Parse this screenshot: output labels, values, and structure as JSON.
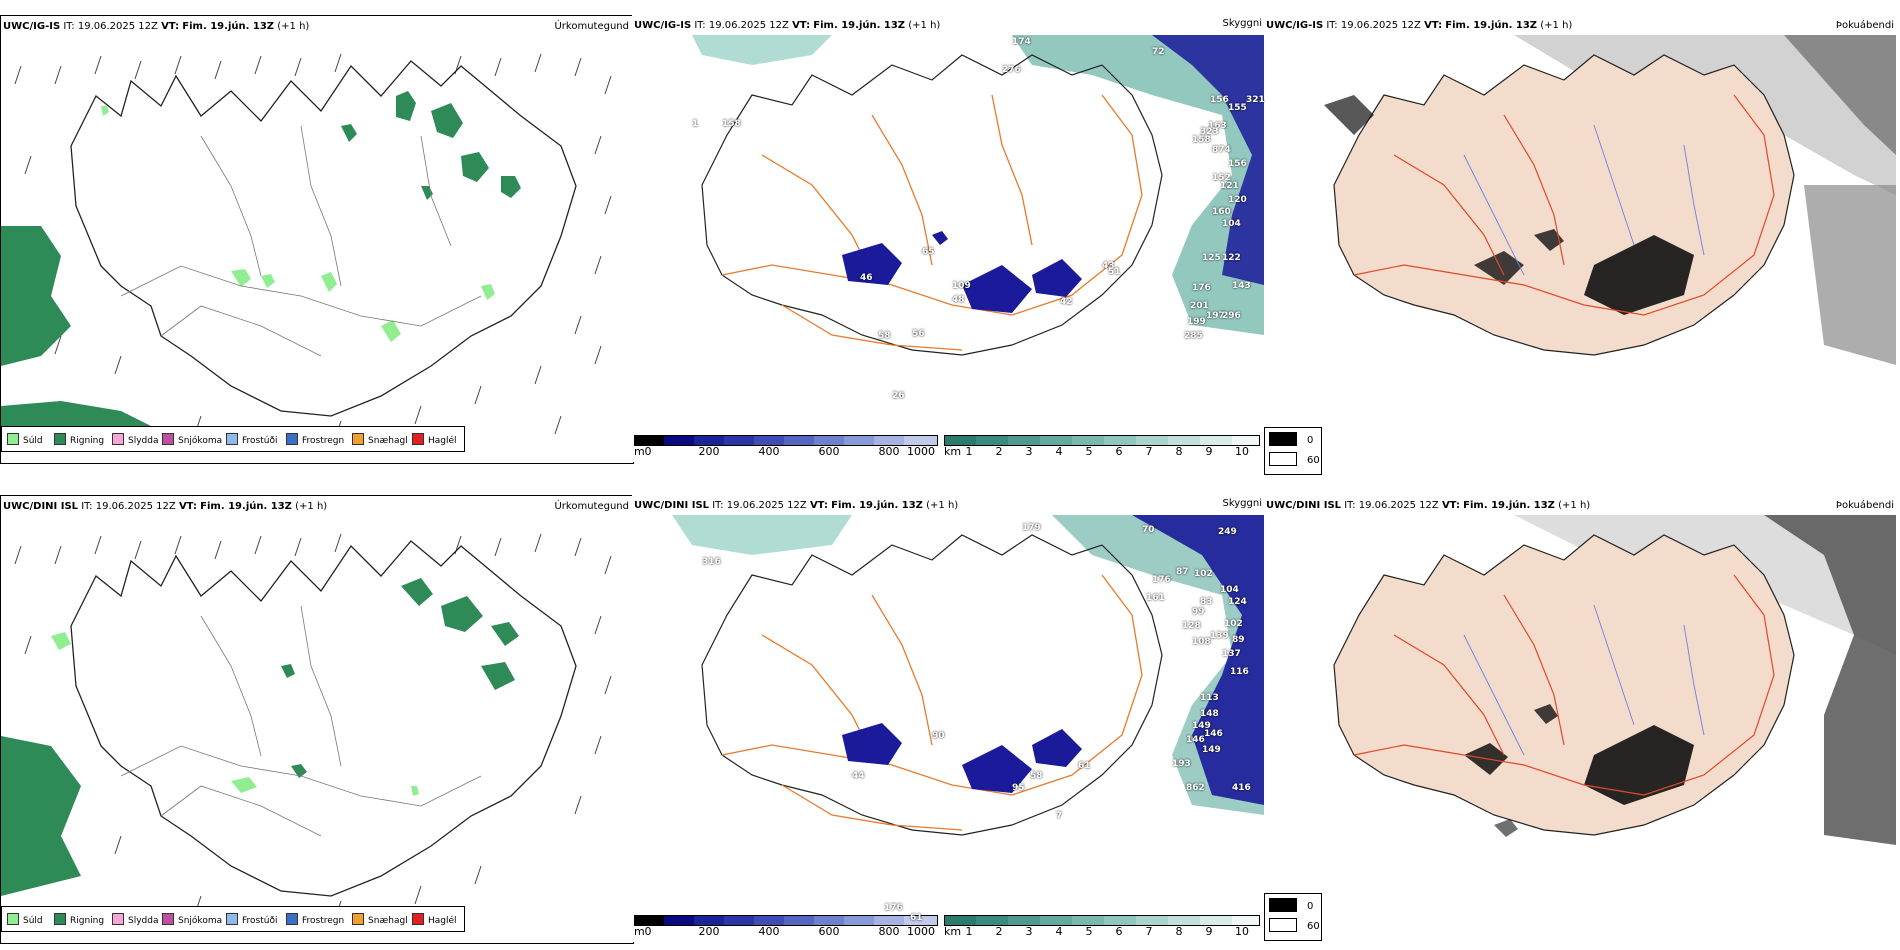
{
  "rows": [
    {
      "model": "UWC/IG-IS",
      "it_label": "IT:",
      "it_value": "19.06.2025 12Z",
      "vt_label": "VT:",
      "vt_value": "Fim. 19.jún. 13Z",
      "lead": "(+1 h)"
    },
    {
      "model": "UWC/DINI ISL",
      "it_label": "IT:",
      "it_value": "19.06.2025 12Z",
      "vt_label": "VT:",
      "vt_value": "Fim. 19.jún. 13Z",
      "lead": "(+1 h)"
    }
  ],
  "panel_titles": {
    "precip": "Úrkomutegund",
    "cloud": "Skyggni",
    "fog": "Þokuábendi"
  },
  "precip_legend": [
    {
      "label": "Súld",
      "color": "#90ee90"
    },
    {
      "label": "Rigning",
      "color": "#2e8b57"
    },
    {
      "label": "Slydda",
      "color": "#f4a6d7"
    },
    {
      "label": "Snjókoma",
      "color": "#c04fa0"
    },
    {
      "label": "Frostúði",
      "color": "#8fb8ef"
    },
    {
      "label": "Frostregn",
      "color": "#3a6fc4"
    },
    {
      "label": "Snæhagl",
      "color": "#f0a030"
    },
    {
      "label": "Haglél",
      "color": "#e02020"
    }
  ],
  "colorbar_m": {
    "unit": "m",
    "ticks": [
      "0",
      "200",
      "400",
      "600",
      "800",
      "1000"
    ],
    "colors": [
      "#000000",
      "#0a0a80",
      "#1a2496",
      "#2b36a6",
      "#3d4db4",
      "#5566c2",
      "#6d7fcd",
      "#8899d8",
      "#a6b3e2",
      "#c2caec"
    ]
  },
  "colorbar_km": {
    "unit": "km",
    "ticks": [
      "1",
      "2",
      "3",
      "4",
      "5",
      "6",
      "7",
      "8",
      "9",
      "10"
    ],
    "colors": [
      "#2a7a6e",
      "#3a8a7e",
      "#4e9a8e",
      "#63aa9e",
      "#7ab8ad",
      "#92c6bc",
      "#aad3cb",
      "#c2e0da",
      "#daece8",
      "#f1f7f6"
    ]
  },
  "fog_legend": [
    {
      "label": "0",
      "color": "#000000"
    },
    {
      "label": "60",
      "color": "#ffffff"
    }
  ],
  "cloud_labels_top": [
    "174",
    "72",
    "276",
    "156",
    "155",
    "321",
    "163",
    "323",
    "158",
    "874",
    "156",
    "152",
    "121",
    "120",
    "160",
    "104",
    "125",
    "122",
    "143",
    "176",
    "201",
    "199",
    "197",
    "296",
    "285",
    "46",
    "65",
    "109",
    "43",
    "51",
    "48",
    "42",
    "58",
    "56",
    "26",
    "158",
    "1"
  ],
  "cloud_labels_bottom": [
    "179",
    "249",
    "70",
    "316",
    "176",
    "87",
    "102",
    "104",
    "124",
    "161",
    "83",
    "99",
    "102",
    "128",
    "139",
    "89",
    "108",
    "137",
    "116",
    "113",
    "148",
    "149",
    "146",
    "146",
    "149",
    "193",
    "862",
    "416",
    "44",
    "90",
    "58",
    "61",
    "95",
    "7",
    "61",
    "176"
  ],
  "colors": {
    "rain": "#2e8b57",
    "drizzle": "#90ee90",
    "coast": "#222222",
    "road": "#e87a2a",
    "cloud_dark": "#1a1a9a",
    "cloud_teal": "#3a9a8a",
    "fog_land": "#f3dccb",
    "fog_road": "#e04a2a",
    "fog_river": "#6a82e6"
  }
}
